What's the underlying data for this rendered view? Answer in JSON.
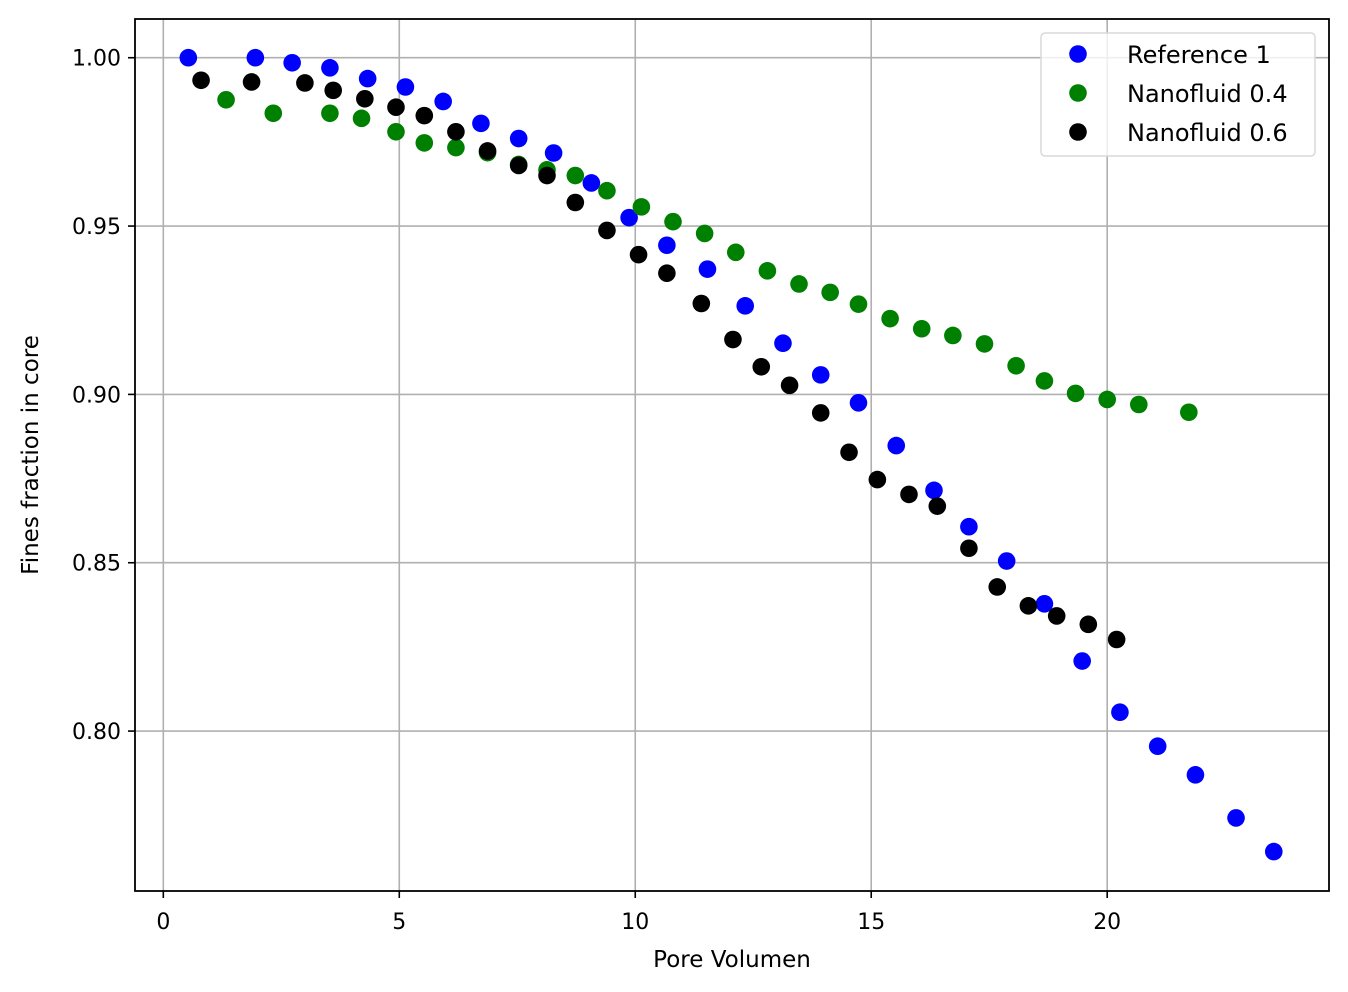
{
  "chart_data": {
    "type": "scatter",
    "xlabel": "Pore Volumen",
    "ylabel": "Fines fraction in core",
    "xlim": [
      -0.6,
      24.7
    ],
    "ylim": [
      0.7525,
      1.0115
    ],
    "x_ticks": [
      0,
      5,
      10,
      15,
      20
    ],
    "x_tick_labels": [
      "0",
      "5",
      "10",
      "15",
      "20"
    ],
    "y_ticks": [
      0.8,
      0.85,
      0.9,
      0.95,
      1.0
    ],
    "y_tick_labels": [
      "0.80",
      "0.85",
      "0.90",
      "0.95",
      "1.00"
    ],
    "grid": true,
    "legend_position": "top-right",
    "series": [
      {
        "name": "Reference 1",
        "color": "#0000ff",
        "x": [
          0.53,
          1.95,
          2.73,
          3.53,
          4.33,
          5.13,
          5.93,
          6.73,
          7.53,
          8.27,
          9.07,
          9.87,
          10.67,
          11.53,
          12.33,
          13.13,
          13.93,
          14.73,
          15.53,
          16.33,
          17.07,
          17.87,
          18.67,
          19.47,
          20.27,
          21.07,
          21.87,
          22.73,
          23.53
        ],
        "y": [
          1.0,
          1.0,
          0.9985,
          0.997,
          0.9938,
          0.9913,
          0.987,
          0.9805,
          0.976,
          0.9717,
          0.9628,
          0.9525,
          0.9443,
          0.9372,
          0.9263,
          0.9152,
          0.9058,
          0.8975,
          0.8848,
          0.8715,
          0.8607,
          0.8505,
          0.8378,
          0.8208,
          0.8056,
          0.7955,
          0.787,
          0.7742,
          0.7642
        ]
      },
      {
        "name": "Nanofluid 0.4",
        "color": "#008000",
        "x": [
          1.33,
          2.33,
          3.53,
          4.2,
          4.93,
          5.53,
          6.2,
          6.87,
          7.53,
          8.13,
          8.73,
          9.4,
          10.13,
          10.8,
          11.47,
          12.13,
          12.8,
          13.47,
          14.13,
          14.73,
          15.4,
          16.07,
          16.73,
          17.4,
          18.07,
          18.67,
          19.33,
          20,
          20.67,
          21.73
        ],
        "y": [
          0.9875,
          0.9835,
          0.9835,
          0.982,
          0.978,
          0.9747,
          0.9733,
          0.9718,
          0.9683,
          0.9667,
          0.965,
          0.9605,
          0.9557,
          0.9513,
          0.9478,
          0.9422,
          0.9367,
          0.9328,
          0.9303,
          0.9268,
          0.9225,
          0.9195,
          0.9175,
          0.915,
          0.9085,
          0.904,
          0.9003,
          0.8985,
          0.897,
          0.8947
        ]
      },
      {
        "name": "Nanofluid 0.6",
        "color": "#000000",
        "x": [
          0.8,
          1.87,
          3.0,
          3.6,
          4.27,
          4.93,
          5.53,
          6.2,
          6.87,
          7.53,
          8.13,
          8.73,
          9.4,
          10.07,
          10.67,
          11.4,
          12.07,
          12.67,
          13.27,
          13.93,
          14.53,
          15.13,
          15.8,
          16.4,
          17.07,
          17.67,
          18.33,
          18.93,
          19.6,
          20.2
        ],
        "y": [
          0.9933,
          0.9928,
          0.9925,
          0.9903,
          0.9878,
          0.9853,
          0.9828,
          0.978,
          0.9723,
          0.968,
          0.965,
          0.957,
          0.9487,
          0.9415,
          0.936,
          0.927,
          0.9163,
          0.9082,
          0.9027,
          0.8945,
          0.8828,
          0.8747,
          0.8703,
          0.8668,
          0.8543,
          0.8428,
          0.8372,
          0.8342,
          0.8317,
          0.8272
        ]
      }
    ]
  }
}
